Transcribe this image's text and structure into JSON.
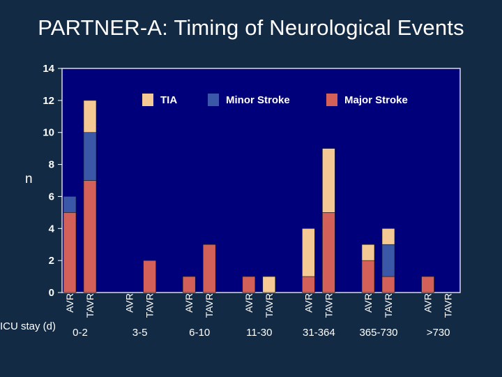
{
  "title": "PARTNER-A: Timing of Neurological Events",
  "chart_data": {
    "type": "bar",
    "stacked": true,
    "ylabel": "n",
    "xlabel": "ICU stay (d)",
    "ylim": [
      0,
      14
    ],
    "yticks": [
      0,
      2,
      4,
      6,
      8,
      10,
      12,
      14
    ],
    "groups": [
      "0-2",
      "3-5",
      "6-10",
      "11-30",
      "31-364",
      "365-730",
      ">730"
    ],
    "bar_labels": [
      "AVR",
      "TAVR"
    ],
    "legend": {
      "position": "top",
      "entries": [
        "TIA",
        "Minor Stroke",
        "Major Stroke"
      ]
    },
    "grid": false,
    "series": [
      {
        "name": "Major Stroke",
        "color": "#d4605a",
        "values": {
          "AVR": [
            5,
            0,
            1,
            1,
            1,
            2,
            1
          ],
          "TAVR": [
            7,
            2,
            3,
            0,
            5,
            1,
            0
          ]
        }
      },
      {
        "name": "Minor Stroke",
        "color": "#3a57a8",
        "values": {
          "AVR": [
            1,
            0,
            0,
            0,
            0,
            0,
            0
          ],
          "TAVR": [
            3,
            0,
            0,
            0,
            0,
            2,
            0
          ]
        }
      },
      {
        "name": "TIA",
        "color": "#f5c994",
        "values": {
          "AVR": [
            0,
            0,
            0,
            0,
            3,
            1,
            0
          ],
          "TAVR": [
            2,
            0,
            0,
            1,
            4,
            1,
            0
          ]
        }
      }
    ]
  }
}
